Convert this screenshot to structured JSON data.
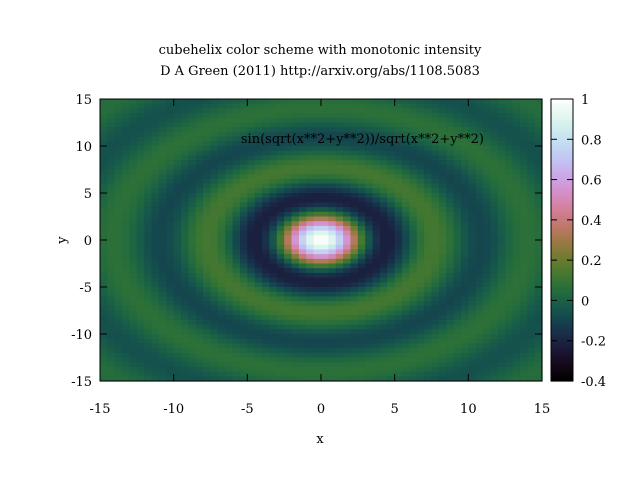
{
  "chart_data": {
    "type": "heatmap",
    "title": "cubehelix color scheme with monotonic intensity",
    "subtitle": "D A Green (2011) http://arxiv.org/abs/1108.5083",
    "xlabel": "x",
    "ylabel": "y",
    "function_label": "sin(sqrt(x**2+y**2))/sqrt(x**2+y**2)",
    "function": "sin(r)/r, r = sqrt(x^2 + y^2)",
    "xlim": [
      -15,
      15
    ],
    "ylim": [
      -15,
      15
    ],
    "x_ticks": [
      "-15",
      "-10",
      "-5",
      "0",
      "5",
      "10",
      "15"
    ],
    "y_ticks": [
      "-15",
      "-10",
      "-5",
      "0",
      "5",
      "10",
      "15"
    ],
    "colorbar": {
      "range": [
        -0.4,
        1
      ],
      "ticks": [
        "1",
        "0.8",
        "0.6",
        "0.4",
        "0.2",
        "0",
        "-0.2",
        "-0.4"
      ],
      "palette": "cubehelix (start 0.5, cycles -1.5, saturation 1)"
    },
    "grid": false
  }
}
